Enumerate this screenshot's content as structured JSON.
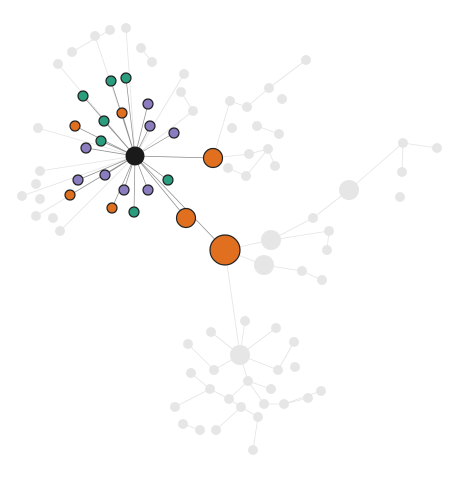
{
  "colors": {
    "background": "#ffffff",
    "hub": "#1a1a1a",
    "green": "#2a9d7e",
    "orange": "#e07020",
    "purple": "#8a7cbf",
    "outline": "#222222",
    "faded_node": "#e6e6e6",
    "faded_edge": "#e4e4e4",
    "highlight_edge": "#8c8c8c"
  },
  "legend": [],
  "node_groups": [
    "hub",
    "green",
    "orange",
    "purple",
    "faded"
  ]
}
